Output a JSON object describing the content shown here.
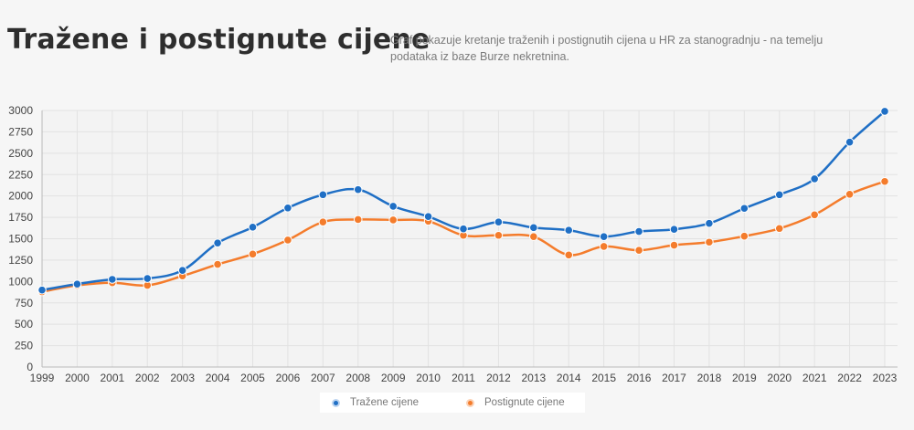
{
  "header": {
    "title": "Tražene i postignute cijene",
    "description": "Graf pokazuje kretanje traženih i postignutih cijena u HR za stanogradnju - na temelju podataka iz baze Burze nekretnina."
  },
  "chart_data": {
    "type": "line",
    "title": "Tražene i postignute cijene",
    "xlabel": "",
    "ylabel": "",
    "categories": [
      "1999",
      "2000",
      "2001",
      "2002",
      "2003",
      "2004",
      "2005",
      "2006",
      "2007",
      "2008",
      "2009",
      "2010",
      "2011",
      "2012",
      "2013",
      "2014",
      "2015",
      "2016",
      "2017",
      "2018",
      "2019",
      "2020",
      "2021",
      "2022",
      "2023"
    ],
    "ylim": [
      0,
      3000
    ],
    "yticks": [
      0,
      250,
      500,
      750,
      1000,
      1250,
      1500,
      1750,
      2000,
      2250,
      2500,
      2750,
      3000
    ],
    "grid": true,
    "legend_position": "bottom",
    "series": [
      {
        "name": "Tražene cijene",
        "color": "#1f6fc5",
        "values": [
          900,
          970,
          1025,
          1035,
          1130,
          1450,
          1635,
          1860,
          2015,
          2075,
          1880,
          1760,
          1615,
          1695,
          1630,
          1600,
          1525,
          1585,
          1610,
          1680,
          1855,
          2015,
          2200,
          2630,
          2990
        ]
      },
      {
        "name": "Postignute cijene",
        "color": "#f47c2c",
        "values": [
          880,
          955,
          985,
          955,
          1065,
          1200,
          1320,
          1485,
          1695,
          1725,
          1720,
          1705,
          1540,
          1540,
          1525,
          1310,
          1410,
          1365,
          1425,
          1460,
          1530,
          1620,
          1780,
          2020,
          2170
        ]
      }
    ]
  }
}
